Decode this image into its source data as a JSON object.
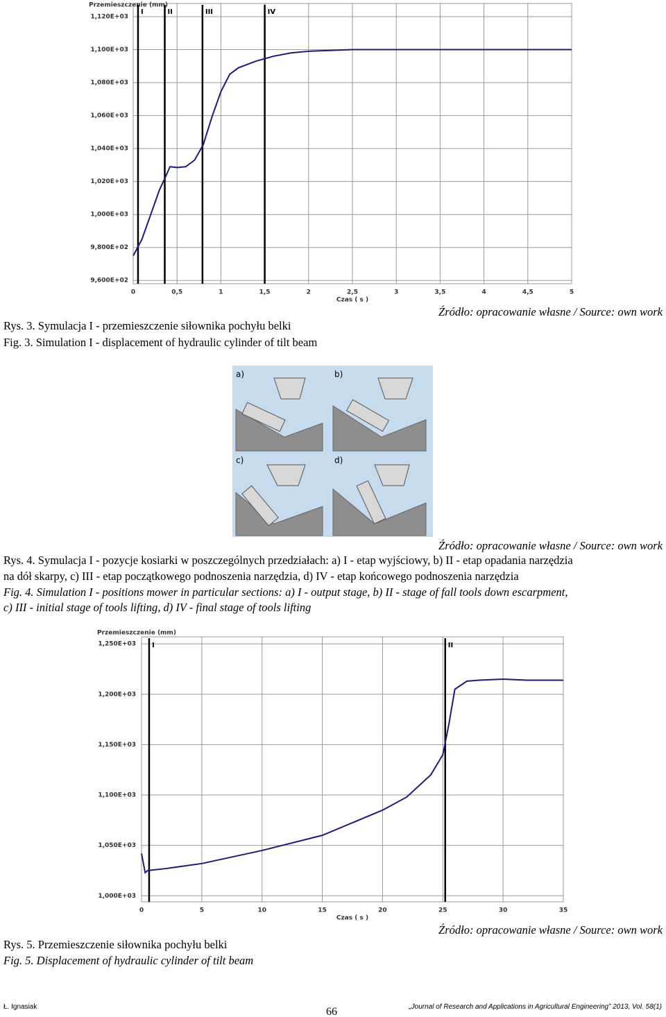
{
  "chart_data": [
    {
      "type": "line",
      "y_label": "Przemieszczenie (mm)",
      "x_label": "Czas ( s )",
      "x": [
        0,
        0.1,
        0.2,
        0.3,
        0.37,
        0.42,
        0.5,
        0.6,
        0.7,
        0.8,
        0.9,
        1.0,
        1.1,
        1.2,
        1.4,
        1.6,
        1.8,
        2.0,
        2.5,
        3,
        3.5,
        4,
        4.5,
        5
      ],
      "values": [
        975,
        985,
        1000,
        1015,
        1023,
        1029,
        1028.5,
        1029,
        1033,
        1042.5,
        1059.5,
        1074.5,
        1085,
        1089,
        1093,
        1096,
        1098,
        1099,
        1100,
        1100,
        1100,
        1100,
        1100,
        1100
      ],
      "color": "#1c1c78",
      "xlim": [
        0,
        5
      ],
      "ylim": [
        958,
        1128
      ],
      "xticks": [
        0,
        {
          "value": 0.5,
          "label": "0,5"
        },
        1,
        {
          "value": 1.5,
          "label": "1,5"
        },
        2,
        {
          "value": 2.5,
          "label": "2,5"
        },
        3,
        {
          "value": 3.5,
          "label": "3,5"
        },
        4,
        {
          "value": 4.5,
          "label": "4,5"
        },
        5
      ],
      "yticks": [
        {
          "value": 960,
          "label": "9,600E+02"
        },
        {
          "value": 980,
          "label": "9,800E+02"
        },
        {
          "value": 1000,
          "label": "1,000E+03"
        },
        {
          "value": 1020,
          "label": "1,020E+03"
        },
        {
          "value": 1040,
          "label": "1,040E+03"
        },
        {
          "value": 1060,
          "label": "1,060E+03"
        },
        {
          "value": 1080,
          "label": "1,080E+03"
        },
        {
          "value": 1100,
          "label": "1,100E+03"
        },
        {
          "value": 1120,
          "label": "1,120E+03"
        }
      ],
      "grid": true,
      "markers": [
        {
          "x": 0.055,
          "label": "I"
        },
        {
          "x": 0.36,
          "label": "II"
        },
        {
          "x": 0.79,
          "label": "III"
        },
        {
          "x": 1.5,
          "label": "IV"
        }
      ]
    },
    {
      "type": "line",
      "y_label": "Przemieszczenie (mm)",
      "x_label": "Czas ( s )",
      "x": [
        0,
        0.3,
        0.5,
        2,
        5,
        10,
        15,
        20,
        22,
        24,
        25,
        25.5,
        26,
        27,
        28,
        30,
        32,
        35
      ],
      "values": [
        1042,
        1023,
        1025,
        1027,
        1032,
        1045,
        1060,
        1085,
        1098,
        1120,
        1140,
        1170,
        1205,
        1213,
        1214,
        1215,
        1214,
        1214
      ],
      "color": "#1c1c78",
      "xlim": [
        0,
        35
      ],
      "ylim": [
        994,
        1257
      ],
      "xticks": [
        0,
        5,
        10,
        15,
        20,
        25,
        30,
        35
      ],
      "yticks": [
        {
          "value": 1000,
          "label": "1,000E+03"
        },
        {
          "value": 1050,
          "label": "1,050E+03"
        },
        {
          "value": 1100,
          "label": "1,100E+03"
        },
        {
          "value": 1150,
          "label": "1,150E+03"
        },
        {
          "value": 1200,
          "label": "1,200E+03"
        },
        {
          "value": 1250,
          "label": "1,250E+03"
        }
      ],
      "grid": true,
      "markers": [
        {
          "x": 0.63,
          "label": "I"
        },
        {
          "x": 25.2,
          "label": "II"
        }
      ]
    }
  ],
  "captions": {
    "source": "Źródło: opracowanie własne / Source: own work",
    "fig3": [
      "Rys. 3. Symulacja I - przemieszczenie siłownika pochyłu belki",
      "Fig. 3. Simulation I - displacement of hydraulic cylinder of tilt beam"
    ],
    "fig4_pl": [
      "Rys. 4. Symulacja I - pozycje kosiarki w poszczególnych przedziałach: a) I - etap wyjściowy, b) II - etap opadania narzędzia",
      "na dół skarpy, c) III - etap początkowego podnoszenia narzędzia, d) IV - etap końcowego podnoszenia narzędzia"
    ],
    "fig4_en": [
      "Fig. 4. Simulation I - positions mower in particular sections: a) I - output stage, b) II - stage of fall tools down escarpment,",
      "c) III - initial stage of  tools lifting, d) IV - final stage of  tools lifting"
    ],
    "fig5": [
      "Rys. 5. Przemieszczenie siłownika pochyłu belki",
      "Fig. 5. Displacement of hydraulic cylinder of tilt beam"
    ]
  },
  "image": {
    "labels": [
      "a)",
      "b)",
      "c)",
      "d)"
    ]
  },
  "footer": {
    "author": "Ł. Ignasiak",
    "page": "66",
    "journal": "„Journal of Research and Applications in Agricultural Engineering” 2013, Vol. 58(1)"
  }
}
